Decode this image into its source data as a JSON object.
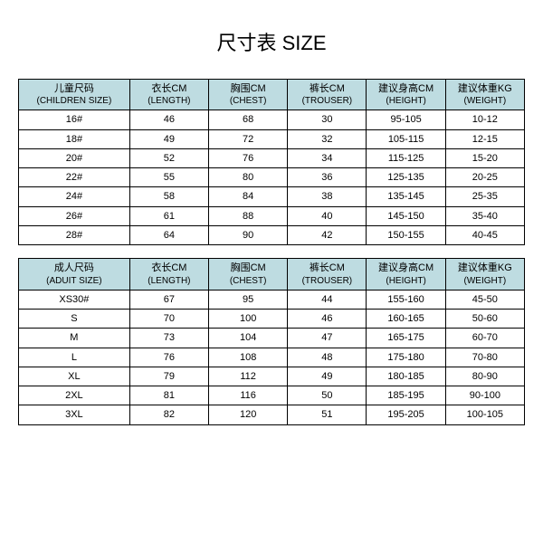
{
  "title": "尺寸表 SIZE",
  "header_bg": "#bedce1",
  "columns_children": [
    {
      "cn": "儿童尺码",
      "en": "(CHILDREN SIZE)"
    },
    {
      "cn": "衣长CM",
      "en": "(LENGTH)"
    },
    {
      "cn": "胸围CM",
      "en": "(CHEST)"
    },
    {
      "cn": "裤长CM",
      "en": "(TROUSER)"
    },
    {
      "cn": "建议身高CM",
      "en": "(HEIGHT)"
    },
    {
      "cn": "建议体重KG",
      "en": "(WEIGHT)"
    }
  ],
  "rows_children": [
    [
      "16#",
      "46",
      "68",
      "30",
      "95-105",
      "10-12"
    ],
    [
      "18#",
      "49",
      "72",
      "32",
      "105-115",
      "12-15"
    ],
    [
      "20#",
      "52",
      "76",
      "34",
      "115-125",
      "15-20"
    ],
    [
      "22#",
      "55",
      "80",
      "36",
      "125-135",
      "20-25"
    ],
    [
      "24#",
      "58",
      "84",
      "38",
      "135-145",
      "25-35"
    ],
    [
      "26#",
      "61",
      "88",
      "40",
      "145-150",
      "35-40"
    ],
    [
      "28#",
      "64",
      "90",
      "42",
      "150-155",
      "40-45"
    ]
  ],
  "columns_adult": [
    {
      "cn": "成人尺码",
      "en": "(ADUIT SIZE)"
    },
    {
      "cn": "衣长CM",
      "en": "(LENGTH)"
    },
    {
      "cn": "胸围CM",
      "en": "(CHEST)"
    },
    {
      "cn": "裤长CM",
      "en": "(TROUSER)"
    },
    {
      "cn": "建议身高CM",
      "en": "(HEIGHT)"
    },
    {
      "cn": "建议体重KG",
      "en": "(WEIGHT)"
    }
  ],
  "rows_adult": [
    [
      "XS30#",
      "67",
      "95",
      "44",
      "155-160",
      "45-50"
    ],
    [
      "S",
      "70",
      "100",
      "46",
      "160-165",
      "50-60"
    ],
    [
      "M",
      "73",
      "104",
      "47",
      "165-175",
      "60-70"
    ],
    [
      "L",
      "76",
      "108",
      "48",
      "175-180",
      "70-80"
    ],
    [
      "XL",
      "79",
      "112",
      "49",
      "180-185",
      "80-90"
    ],
    [
      "2XL",
      "81",
      "116",
      "50",
      "185-195",
      "90-100"
    ],
    [
      "3XL",
      "82",
      "120",
      "51",
      "195-205",
      "100-105"
    ]
  ]
}
